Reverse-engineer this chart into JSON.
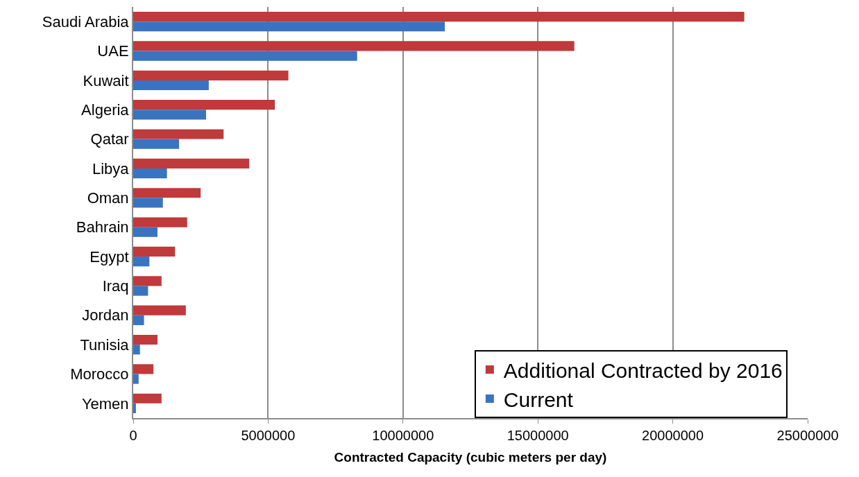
{
  "chart_data": {
    "type": "bar",
    "orientation": "horizontal",
    "xlabel": "Contracted Capacity (cubic meters per day)",
    "categories": [
      "Saudi Arabia",
      "UAE",
      "Kuwait",
      "Algeria",
      "Qatar",
      "Libya",
      "Oman",
      "Bahrain",
      "Egypt",
      "Iraq",
      "Jordan",
      "Tunisia",
      "Morocco",
      "Yemen"
    ],
    "series": [
      {
        "name": "Additional Contracted by 2016",
        "color": "#c0393b",
        "values": [
          22650000,
          16350000,
          5750000,
          5250000,
          3350000,
          4300000,
          2500000,
          2000000,
          1550000,
          1050000,
          1950000,
          900000,
          750000,
          1050000
        ]
      },
      {
        "name": "Current",
        "color": "#3a73c0",
        "values": [
          11550000,
          8300000,
          2800000,
          2700000,
          1700000,
          1250000,
          1100000,
          900000,
          600000,
          550000,
          400000,
          250000,
          200000,
          100000
        ]
      }
    ],
    "xlim": [
      0,
      25000000
    ],
    "xticks": [
      0,
      5000000,
      10000000,
      15000000,
      20000000,
      25000000
    ],
    "grid": "x",
    "legend": "bottom right"
  }
}
